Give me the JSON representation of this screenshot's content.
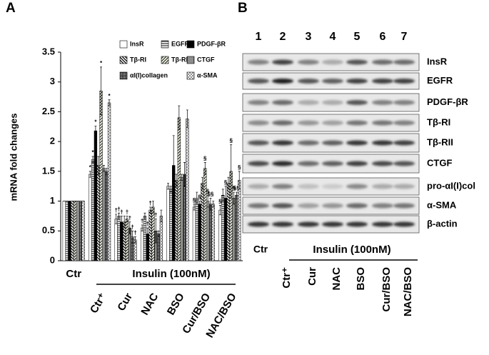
{
  "panel_labels": [
    "A",
    "B"
  ],
  "chart_data": {
    "type": "bar",
    "y_label": "mRNA fold changes",
    "group_label": "Insulin (100nM)",
    "categories": [
      "Ctr",
      "Ctr⁺",
      "Cur",
      "NAC",
      "BSO",
      "Cur/BSO",
      "NAC/BSO"
    ],
    "ylim": [
      0,
      3.5
    ],
    "yticks": [
      0,
      0.5,
      1,
      1.5,
      2,
      2.5,
      3,
      3.5
    ],
    "series": [
      {
        "name": "InsR",
        "pattern": "none",
        "values": [
          1,
          1.45,
          0.7,
          0.55,
          1.25,
          0.9,
          0.85
        ],
        "errors": [
          0,
          0.05,
          0.08,
          0.05,
          0.05,
          0.05,
          0.08
        ],
        "markers": [
          null,
          "*",
          "†",
          "†",
          null,
          "§",
          "§"
        ]
      },
      {
        "name": "EGFR",
        "pattern": "hlines",
        "values": [
          1,
          1.7,
          0.75,
          0.75,
          1.2,
          1.05,
          1.1
        ],
        "errors": [
          0,
          0.05,
          0.05,
          0.05,
          0.05,
          0.1,
          0.1
        ],
        "markers": [
          null,
          "*",
          "†",
          null,
          null,
          null,
          null
        ]
      },
      {
        "name": "PDGF-βR",
        "pattern": "solid",
        "values": [
          1,
          2.18,
          0.65,
          0.45,
          1.6,
          0.95,
          1.05
        ],
        "errors": [
          0,
          0.08,
          0.1,
          0.1,
          0.5,
          0.05,
          0.2
        ],
        "markers": [
          null,
          "*",
          "†",
          "†",
          null,
          "§",
          "§"
        ]
      },
      {
        "name": "Tβ-RI",
        "pattern": "bdiag",
        "values": [
          1,
          1.6,
          0.65,
          0.85,
          1.35,
          1.3,
          1.3
        ],
        "errors": [
          0,
          0.15,
          0.1,
          0.05,
          0.1,
          0.1,
          0.1
        ],
        "markers": [
          null,
          null,
          null,
          "†",
          null,
          null,
          null
        ]
      },
      {
        "name": "Tβ-RII",
        "pattern": "fdiag",
        "values": [
          1,
          2.85,
          0.7,
          0.9,
          2.4,
          1.55,
          1.5
        ],
        "errors": [
          0,
          0.4,
          0.05,
          0.1,
          0.2,
          0.1,
          0.45
        ],
        "markers": [
          null,
          "*",
          "†",
          null,
          null,
          "§",
          "§"
        ]
      },
      {
        "name": "CTGF",
        "pattern": "vlines",
        "values": [
          1,
          1.55,
          0.55,
          0.5,
          1.4,
          1.0,
          1.05
        ],
        "errors": [
          0,
          0.05,
          0.1,
          0.2,
          0.05,
          0.1,
          0.1
        ],
        "markers": [
          null,
          null,
          "†",
          "†",
          null,
          "§",
          "§"
        ]
      },
      {
        "name": "αI(I)collagen",
        "pattern": "grid",
        "values": [
          1,
          1.5,
          0.4,
          0.45,
          1.45,
          0.95,
          1.1
        ],
        "errors": [
          0,
          0.05,
          0.1,
          0.05,
          0.2,
          0.1,
          0.05
        ],
        "markers": [
          null,
          null,
          "†",
          null,
          null,
          "§§",
          "§§"
        ]
      },
      {
        "name": "α-SMA",
        "pattern": "cross",
        "values": [
          1,
          2.65,
          0.35,
          0.75,
          2.38,
          0.95,
          1.35
        ],
        "errors": [
          0,
          0.05,
          0.05,
          0.1,
          0.15,
          0.05,
          0.15
        ],
        "markers": [
          null,
          "*",
          "†",
          null,
          null,
          null,
          "§"
        ]
      }
    ]
  },
  "blot": {
    "lanes": [
      "1",
      "2",
      "3",
      "4",
      "5",
      "6",
      "7"
    ],
    "proteins": [
      "InsR",
      "EGFR",
      "PDGF-βR",
      "Tβ-RI",
      "Tβ-RII",
      "CTGF",
      "pro-αI(I)col",
      "α-SMA",
      "β-actin"
    ],
    "ctr_label": "Ctr",
    "group_label": "Insulin (100nM)",
    "conditions": [
      "Ctr⁺",
      "Cur",
      "NAC",
      "BSO",
      "Cur/BSO",
      "NAC/BSO"
    ]
  }
}
